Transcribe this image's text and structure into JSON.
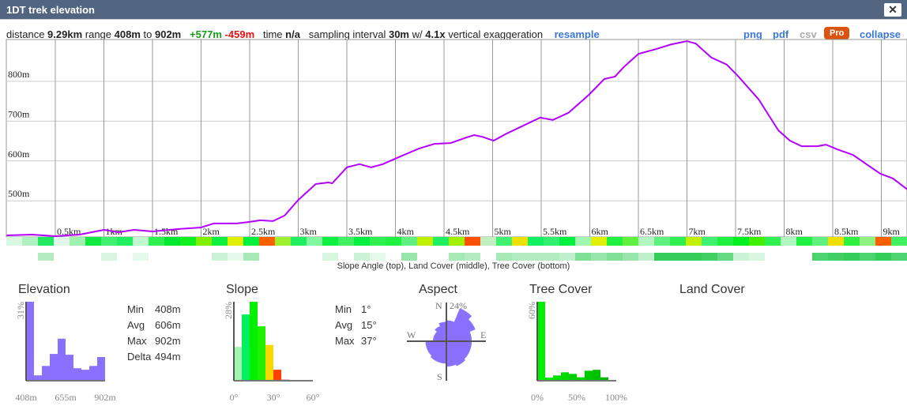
{
  "window": {
    "title": "1DT trek elevation",
    "close_label": "✕"
  },
  "info": {
    "distance_label": "distance",
    "distance": "9.29km",
    "range_label": "range",
    "range_min": "408m",
    "range_to": "to",
    "range_max": "902m",
    "gain": "+577m",
    "loss": "-459m",
    "time_label": "time",
    "time": "n/a",
    "sampling_label": "sampling interval",
    "sampling": "30m",
    "w_label": "w/",
    "exaggeration": "4.1x",
    "exaggeration_label": "vertical exaggeration",
    "resample": "resample"
  },
  "actions": {
    "png": "png",
    "pdf": "pdf",
    "csv": "csv",
    "pro": "Pro",
    "collapse": "collapse"
  },
  "colors": {
    "profile": "#b400ff",
    "histogram": "#8a70ff",
    "link": "#3a78d8",
    "pro": "#d9540f",
    "titlebar": "#526580"
  },
  "strip_caption": "Slope Angle (top), Land Cover (middle), Tree Cover (bottom)",
  "slope_strip": [
    "#d8f8e0",
    "#b0f0c0",
    "#20e860",
    "#e0f8e8",
    "#a0f0b0",
    "#10e840",
    "#40f070",
    "#20f060",
    "#c0f8d0",
    "#30f050",
    "#00e830",
    "#10f020",
    "#80f000",
    "#10f040",
    "#e0f000",
    "#00f040",
    "#ff6000",
    "#a0f030",
    "#20f060",
    "#80f8a0",
    "#10f040",
    "#40f060",
    "#00f040",
    "#30f050",
    "#20f040",
    "#60f080",
    "#c0f000",
    "#20f060",
    "#a0f000",
    "#ff5000",
    "#c0f0c0",
    "#40f070",
    "#f0e000",
    "#10f060",
    "#30f070",
    "#00f040",
    "#a0f8b0",
    "#e0f000",
    "#20f040",
    "#60f040",
    "#b0f8c0",
    "#60f080",
    "#30f050",
    "#c0f000",
    "#40f070",
    "#20f040",
    "#00f020",
    "#40f000",
    "#30f050",
    "#b0f8c0",
    "#20f040",
    "#60f080",
    "#f0e000",
    "#30f040",
    "#90f080",
    "#ff6000",
    "#40f060"
  ],
  "tree_strip": [
    0,
    0,
    0.3,
    0,
    0,
    0,
    0.15,
    0,
    0.1,
    0,
    0,
    0,
    0,
    0.2,
    0.1,
    0.35,
    0,
    0,
    0,
    0,
    0.15,
    0,
    0.2,
    0.1,
    0,
    0.4,
    0,
    0,
    0.35,
    0.3,
    0,
    0.35,
    0.3,
    0.3,
    0.3,
    0.25,
    0.5,
    0.4,
    0.5,
    0.4,
    0.25,
    0.8,
    0.8,
    0.8,
    0.75,
    0.6,
    0.2,
    0.15,
    0,
    0,
    0,
    0.7,
    0.75,
    0.8,
    0.7,
    0.8,
    0.7
  ],
  "chart_data": [
    {
      "type": "line",
      "title": "",
      "xlabel": "",
      "ylabel": "",
      "xlim": [
        0,
        9.29
      ],
      "ylim": [
        408,
        902
      ],
      "grid": true,
      "x_ticks": [
        "0.5km",
        "1km",
        "1.5km",
        "2km",
        "2.5km",
        "3km",
        "3.5km",
        "4km",
        "4.5km",
        "5km",
        "5.5km",
        "6km",
        "6.5km",
        "7km",
        "7.5km",
        "8km",
        "8.5km",
        "9km"
      ],
      "y_ticks": [
        "500m",
        "600m",
        "700m",
        "800m"
      ],
      "x_km": [
        0,
        0.26,
        0.5,
        0.75,
        1.0,
        1.15,
        1.31,
        1.5,
        1.76,
        2.0,
        2.13,
        2.37,
        2.5,
        2.61,
        2.74,
        2.86,
        3.0,
        3.18,
        3.31,
        3.35,
        3.5,
        3.63,
        3.75,
        3.87,
        4.0,
        4.24,
        4.4,
        4.57,
        4.73,
        4.81,
        4.89,
        5.01,
        5.13,
        5.3,
        5.49,
        5.62,
        5.78,
        5.99,
        6.15,
        6.26,
        6.35,
        6.5,
        6.68,
        6.84,
        7.0,
        7.09,
        7.25,
        7.41,
        7.53,
        7.74,
        7.94,
        8.06,
        8.18,
        8.34,
        8.43,
        8.55,
        8.71,
        8.87,
        8.99,
        9.12,
        9.27
      ],
      "elevation_m": [
        413,
        415,
        411,
        415,
        427,
        421,
        427,
        423,
        429,
        433,
        443,
        443,
        447,
        451,
        449,
        463,
        502,
        542,
        546,
        544,
        584,
        592,
        584,
        592,
        606,
        631,
        643,
        645,
        659,
        665,
        661,
        651,
        667,
        687,
        709,
        703,
        721,
        766,
        806,
        812,
        836,
        869,
        881,
        893,
        901,
        895,
        860,
        842,
        812,
        754,
        677,
        651,
        637,
        637,
        641,
        629,
        615,
        588,
        568,
        556,
        528
      ]
    },
    {
      "type": "bar",
      "title": "Elevation",
      "ymax_label": "31%",
      "x_ticks": [
        "408m",
        "655m",
        "902m"
      ],
      "values_pct": [
        31,
        2.1,
        5.8,
        10.5,
        16.5,
        10.2,
        4.9,
        4.3,
        5.8,
        9.3
      ],
      "stats": [
        {
          "label": "Min",
          "value": "408m"
        },
        {
          "label": "Avg",
          "value": "606m"
        },
        {
          "label": "Max",
          "value": "902m"
        },
        {
          "label": "Delta",
          "value": "494m"
        }
      ]
    },
    {
      "type": "bar",
      "title": "Slope",
      "ymax_label": "28%",
      "x_ticks": [
        "0°",
        "30°",
        "60°"
      ],
      "values_pct": [
        12,
        23.5,
        28,
        19.3,
        12.7,
        3.9,
        0.5
      ],
      "bar_colors": [
        "#a0f8b0",
        "#00f060",
        "#00f000",
        "#20f000",
        "#f8d800",
        "#ff4000",
        "#e8a0a0"
      ],
      "stats": [
        {
          "label": "Min",
          "value": "1°"
        },
        {
          "label": "Avg",
          "value": "15°"
        },
        {
          "label": "Max",
          "value": "37°"
        }
      ]
    },
    {
      "type": "rose",
      "title": "Aspect",
      "max_label": "24%",
      "directions": [
        "N",
        "E",
        "S",
        "W"
      ],
      "sectors_pct": [
        14,
        24,
        21,
        17,
        17,
        17,
        18,
        17,
        15,
        15,
        14,
        14,
        9,
        9,
        11,
        13
      ]
    },
    {
      "type": "bar",
      "title": "Tree Cover",
      "ymax_label": "60%",
      "x_ticks": [
        "0%",
        "50%",
        "100%"
      ],
      "values_pct": [
        60,
        2.4,
        4,
        6.4,
        5.2,
        2.6,
        7.6,
        8.3,
        2.6,
        0
      ],
      "bar_colors": [
        "#00f000",
        "#00e800",
        "#00e000",
        "#00d800",
        "#00d000",
        "#00d800",
        "#00c800",
        "#00c000",
        "#00b800",
        "#00b000"
      ]
    },
    {
      "type": "bar",
      "title": "Land Cover",
      "values_pct": []
    }
  ]
}
